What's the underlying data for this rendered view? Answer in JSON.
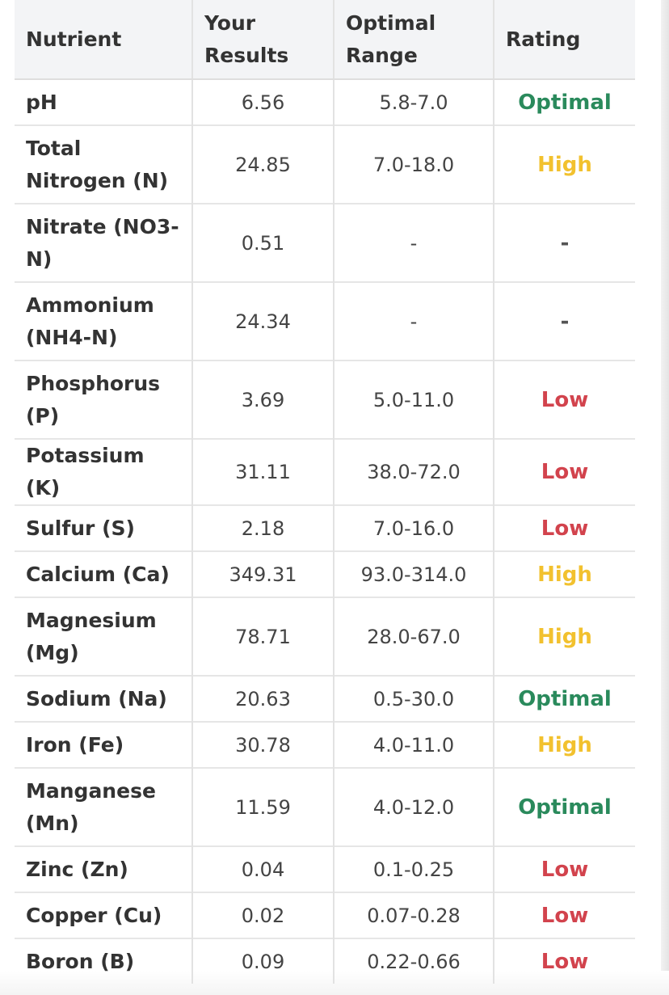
{
  "table": {
    "headers": {
      "nutrient": "Nutrient",
      "results": "Your Results",
      "range": "Optimal Range",
      "rating": "Rating"
    },
    "rows": [
      {
        "nutrient": "pH",
        "result": "6.56",
        "range": "5.8-7.0",
        "rating": "Optimal"
      },
      {
        "nutrient": "Total Nitrogen (N)",
        "result": "24.85",
        "range": "7.0-18.0",
        "rating": "High"
      },
      {
        "nutrient": "Nitrate (NO3-N)",
        "result": "0.51",
        "range": "-",
        "rating": "-"
      },
      {
        "nutrient": "Ammonium (NH4-N)",
        "result": "24.34",
        "range": "-",
        "rating": "-"
      },
      {
        "nutrient": "Phosphorus (P)",
        "result": "3.69",
        "range": "5.0-11.0",
        "rating": "Low"
      },
      {
        "nutrient": "Potassium (K)",
        "result": "31.11",
        "range": "38.0-72.0",
        "rating": "Low"
      },
      {
        "nutrient": "Sulfur (S)",
        "result": "2.18",
        "range": "7.0-16.0",
        "rating": "Low"
      },
      {
        "nutrient": "Calcium (Ca)",
        "result": "349.31",
        "range": "93.0-314.0",
        "rating": "High"
      },
      {
        "nutrient": "Magnesium (Mg)",
        "result": "78.71",
        "range": "28.0-67.0",
        "rating": "High"
      },
      {
        "nutrient": "Sodium (Na)",
        "result": "20.63",
        "range": "0.5-30.0",
        "rating": "Optimal"
      },
      {
        "nutrient": "Iron (Fe)",
        "result": "30.78",
        "range": "4.0-11.0",
        "rating": "High"
      },
      {
        "nutrient": "Manganese (Mn)",
        "result": "11.59",
        "range": "4.0-12.0",
        "rating": "Optimal"
      },
      {
        "nutrient": "Zinc (Zn)",
        "result": "0.04",
        "range": "0.1-0.25",
        "rating": "Low"
      },
      {
        "nutrient": "Copper (Cu)",
        "result": "0.02",
        "range": "0.07-0.28",
        "rating": "Low"
      },
      {
        "nutrient": "Boron (B)",
        "result": "0.09",
        "range": "0.22-0.66",
        "rating": "Low"
      }
    ]
  },
  "rating_colors": {
    "Optimal": "#2a8a5c",
    "High": "#f2c12e",
    "Low": "#d2434d"
  }
}
